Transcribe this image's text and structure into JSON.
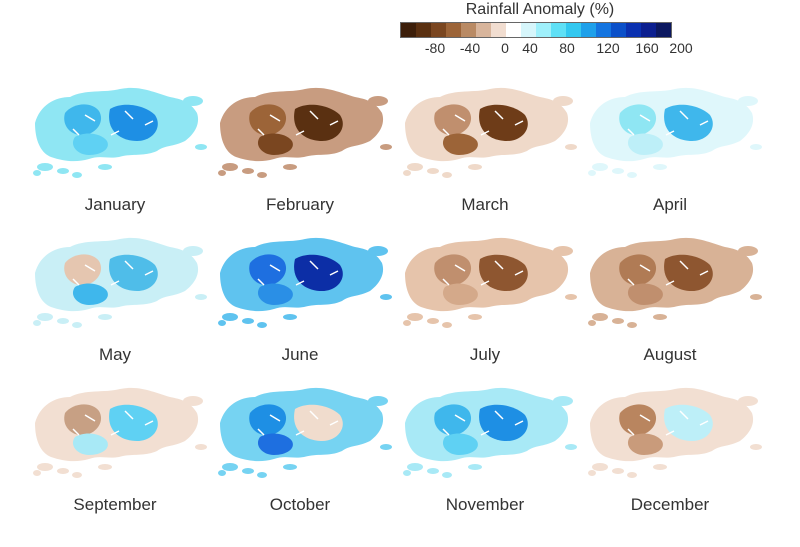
{
  "legend": {
    "title": "Rainfall Anomaly (%)",
    "colors": [
      "#3d1f0a",
      "#5a3011",
      "#7a4620",
      "#9c6438",
      "#b98a64",
      "#d8b59c",
      "#f1ddd0",
      "#ffffff",
      "#d6f6fb",
      "#9ff0fb",
      "#5fe0f6",
      "#33c8f0",
      "#1ea0ea",
      "#1474e0",
      "#0b50c9",
      "#0a30b0",
      "#0b1e8f",
      "#0b175f"
    ],
    "ticks": [
      "-80",
      "-40",
      "0",
      "40",
      "80",
      "120",
      "160",
      "200"
    ]
  },
  "months": [
    {
      "name": "January",
      "base": "#8fe6f3",
      "blobs": [
        "#3fb7ec",
        "#1e8fe4",
        "#5fd1f3"
      ]
    },
    {
      "name": "February",
      "base": "#c89c80",
      "blobs": [
        "#9c6438",
        "#5a3011",
        "#7a4620"
      ]
    },
    {
      "name": "March",
      "base": "#efd9c9",
      "blobs": [
        "#c08f6e",
        "#6e3c18",
        "#9c6438"
      ]
    },
    {
      "name": "April",
      "base": "#dff7fb",
      "blobs": [
        "#8fe6f3",
        "#3fb7ec",
        "#bdeff8"
      ]
    },
    {
      "name": "May",
      "base": "#c9eff6",
      "blobs": [
        "#e5c6b0",
        "#4fbde9",
        "#3fb7ec"
      ]
    },
    {
      "name": "June",
      "base": "#5fc3ef",
      "blobs": [
        "#1e6fe0",
        "#0c2ea6",
        "#2a8fe6"
      ]
    },
    {
      "name": "July",
      "base": "#e6c4ab",
      "blobs": [
        "#c08f6e",
        "#8e5630",
        "#d4a98a"
      ]
    },
    {
      "name": "August",
      "base": "#d8b296",
      "blobs": [
        "#b07b55",
        "#8e5630",
        "#c08f6e"
      ]
    },
    {
      "name": "September",
      "base": "#f2dfd2",
      "blobs": [
        "#c7a084",
        "#5fd1f3",
        "#a8e9f6"
      ]
    },
    {
      "name": "October",
      "base": "#76d3f2",
      "blobs": [
        "#1e8fe4",
        "#f0dccd",
        "#1e6fe0"
      ]
    },
    {
      "name": "November",
      "base": "#a8e9f6",
      "blobs": [
        "#3fb7ec",
        "#1e8fe4",
        "#5fd1f3"
      ]
    },
    {
      "name": "December",
      "base": "#f2dfd2",
      "blobs": [
        "#b9855f",
        "#bdeff8",
        "#c99b7b"
      ]
    }
  ]
}
